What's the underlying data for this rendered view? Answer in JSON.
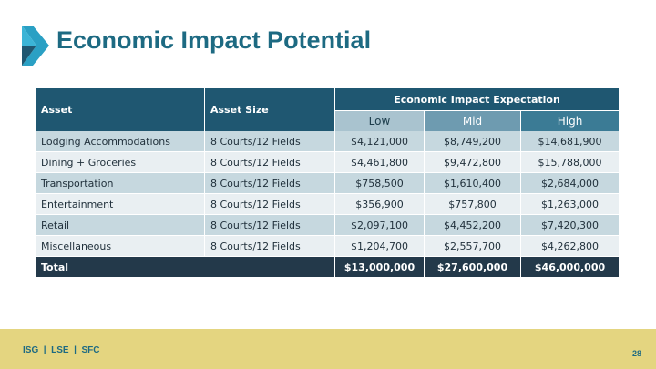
{
  "slide": {
    "title": "Economic Impact Potential",
    "colors": {
      "title": "#1d6a82",
      "header": "#1f5771",
      "total_row": "#23394a",
      "footer_band": "#e4d580"
    }
  },
  "table": {
    "headers": {
      "asset": "Asset",
      "asset_size": "Asset Size",
      "group": "Economic Impact Expectation",
      "low": "Low",
      "mid": "Mid",
      "high": "High"
    },
    "rows": [
      {
        "asset": "Lodging Accommodations",
        "size": "8 Courts/12 Fields",
        "low": "$4,121,000",
        "mid": "$8,749,200",
        "high": "$14,681,900"
      },
      {
        "asset": "Dining + Groceries",
        "size": "8 Courts/12 Fields",
        "low": "$4,461,800",
        "mid": "$9,472,800",
        "high": "$15,788,000"
      },
      {
        "asset": "Transportation",
        "size": "8 Courts/12 Fields",
        "low": "$758,500",
        "mid": "$1,610,400",
        "high": "$2,684,000"
      },
      {
        "asset": "Entertainment",
        "size": "8 Courts/12 Fields",
        "low": "$356,900",
        "mid": "$757,800",
        "high": "$1,263,000"
      },
      {
        "asset": "Retail",
        "size": "8 Courts/12 Fields",
        "low": "$2,097,100",
        "mid": "$4,452,200",
        "high": "$7,420,300"
      },
      {
        "asset": "Miscellaneous",
        "size": "8 Courts/12 Fields",
        "low": "$1,204,700",
        "mid": "$2,557,700",
        "high": "$4,262,800"
      }
    ],
    "total": {
      "label": "Total",
      "low": "$13,000,000",
      "mid": "$27,600,000",
      "high": "$46,000,000"
    }
  },
  "footer": {
    "left": "ISG  |  LSE  |  SFC",
    "page_number": "28"
  }
}
